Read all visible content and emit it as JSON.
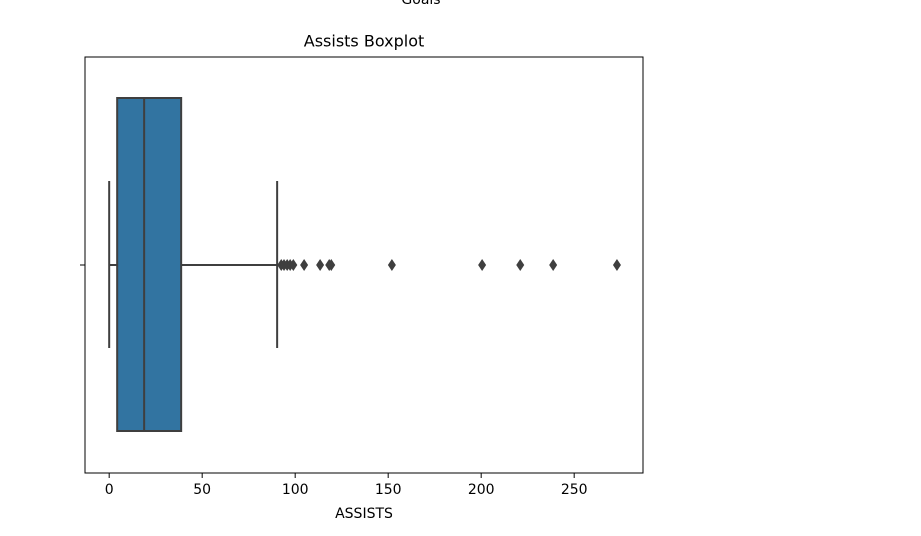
{
  "header": {
    "text": "Goals"
  },
  "chart_data": {
    "type": "box",
    "title": "Assists Boxplot",
    "x_label": "ASSISTS",
    "color": "#3274a1",
    "edge_color": "#3f3f3f",
    "whisker_low": 0,
    "q1": 4.3,
    "median": 18.8,
    "q3": 38.7,
    "whisker_high": 90.3,
    "outliers": [
      92.5,
      94,
      95.7,
      97.3,
      99,
      104.8,
      113.4,
      118.3,
      119.4,
      152,
      200.5,
      221,
      238.7,
      273
    ],
    "xlim": [
      -13,
      287
    ],
    "xticks": [
      0,
      50,
      100,
      150,
      200,
      250
    ]
  }
}
